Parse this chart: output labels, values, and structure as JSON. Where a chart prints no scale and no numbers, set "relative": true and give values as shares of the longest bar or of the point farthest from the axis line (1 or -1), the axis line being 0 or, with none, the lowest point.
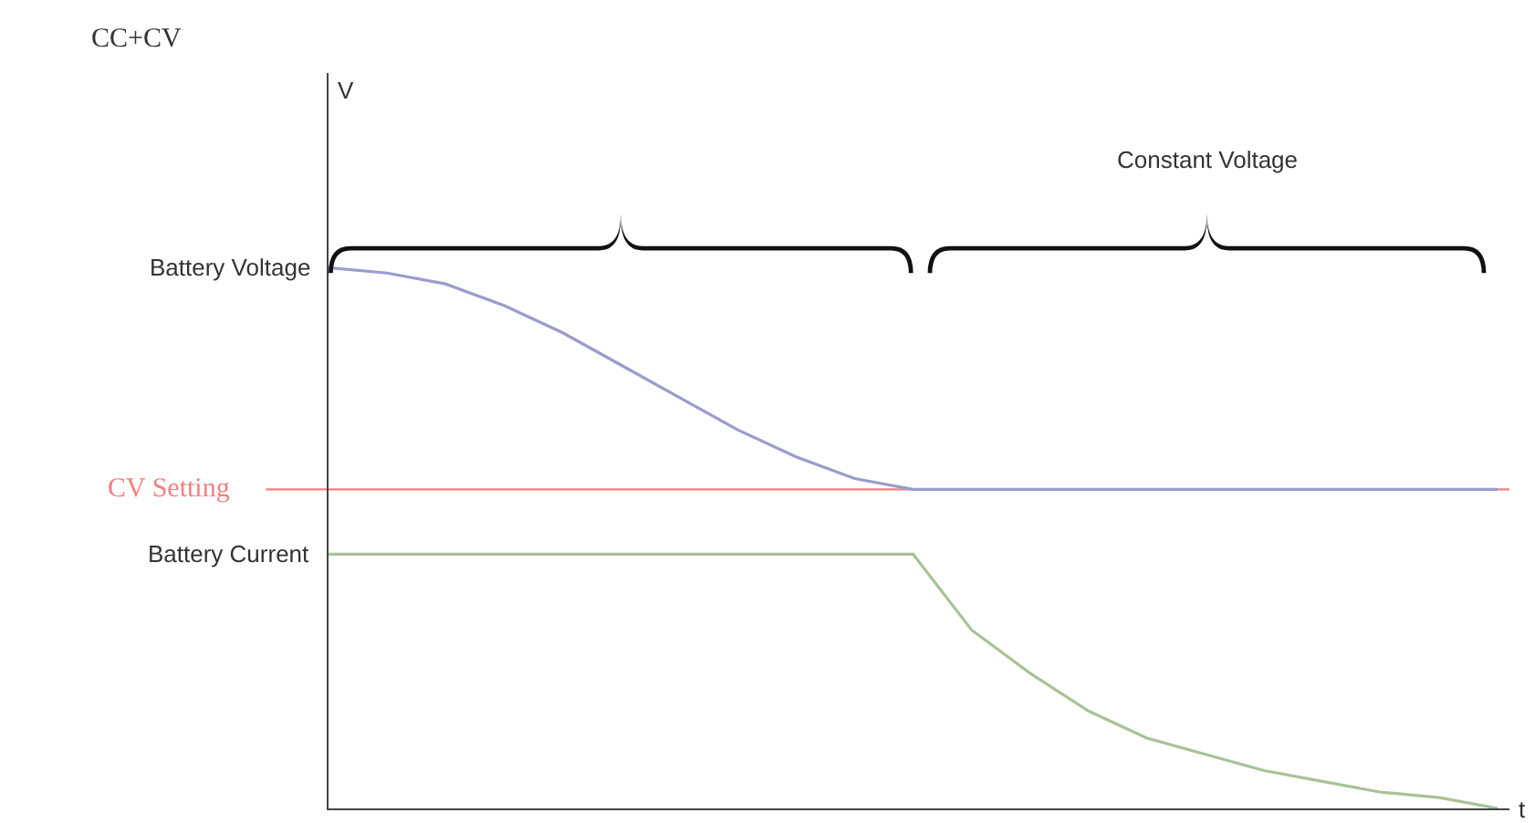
{
  "chart_data": {
    "type": "line",
    "title": "CC+CV",
    "xlabel": "t",
    "relative": true,
    "categories": [
      null,
      null,
      null,
      null,
      null,
      null,
      null,
      null,
      null,
      null,
      null,
      null,
      null,
      null,
      null,
      null,
      null,
      null,
      null,
      null,
      null
    ],
    "series": [
      {
        "color": "#9a9ccc",
        "values": [
          1,
          0.99,
          0.97,
          0.93,
          0.88,
          0.82,
          0.76,
          0.7,
          0.65,
          0.61,
          0.59,
          0.59,
          0.59,
          0.59,
          0.59,
          0.59,
          0.59,
          0.59,
          0.59,
          0.59,
          0.59
        ]
      },
      {
        "color": "#a9c294",
        "values": [
          0.47,
          0.47,
          0.47,
          0.47,
          0.47,
          0.47,
          0.47,
          0.47,
          0.47,
          0.47,
          0.47,
          0.33,
          0.25,
          0.18,
          0.13,
          0.1,
          0.07,
          0.05,
          0.03,
          0.02,
          0
        ]
      }
    ],
    "ref_lines": [
      {
        "axis": "y",
        "value": 0.59,
        "label": "CV Setting",
        "color": "#f08080"
      }
    ],
    "annotations": [
      "Battery Voltage",
      "Battery Current",
      "Constant Voltage",
      "V"
    ]
  }
}
